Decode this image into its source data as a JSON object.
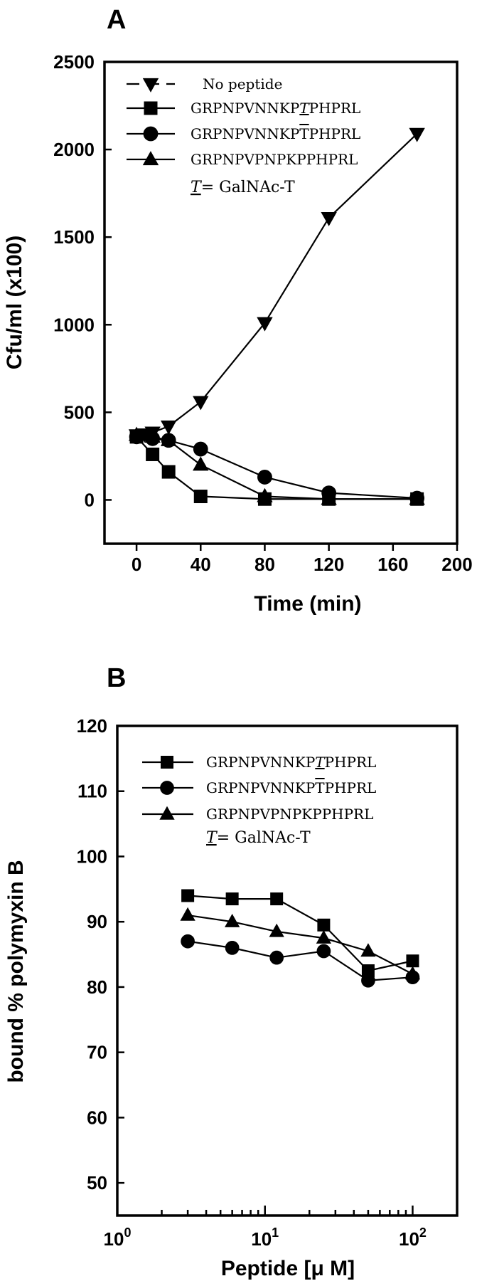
{
  "chart_data": [
    {
      "panel_label": "A",
      "type": "line",
      "xlabel": "Time (min)",
      "ylabel": "Cfu/ml (x100)",
      "xlim": [
        -20,
        200
      ],
      "ylim": [
        -250,
        2500
      ],
      "xticks": [
        0,
        40,
        80,
        120,
        160,
        200
      ],
      "yticks": [
        0,
        500,
        1000,
        1500,
        2000,
        2500
      ],
      "xtick_labels": [
        "0",
        "40",
        "80",
        "120",
        "160",
        "200"
      ],
      "ytick_labels": [
        "0",
        "500",
        "1000",
        "1500",
        "2000",
        "2500"
      ],
      "x_scale": "linear",
      "grid": false,
      "legend_position": "top-left",
      "legend_note": "= GalNAc-T",
      "legend_note_symbol": "T",
      "series": [
        {
          "name": "No peptide",
          "marker": "triangle-down",
          "x": [
            0,
            5,
            10,
            20,
            40,
            80,
            120,
            175
          ],
          "y": [
            370,
            375,
            385,
            420,
            560,
            1010,
            1610,
            2090
          ]
        },
        {
          "name": "GRPNPVNNKPTPHPRL",
          "name_prefix": "GRPNPVNNKP",
          "name_mark": "T",
          "name_suffix": "PHPRL",
          "mark_style": "italic-underline",
          "marker": "square",
          "x": [
            0,
            10,
            20,
            40,
            80,
            120,
            175
          ],
          "y": [
            360,
            260,
            160,
            20,
            5,
            5,
            5
          ]
        },
        {
          "name": "GRPNPVNNKPTPHPRL",
          "name_prefix": "GRPNPVNNKP",
          "name_mark": "T",
          "name_suffix": "PHPRL",
          "mark_style": "overline",
          "marker": "circle",
          "x": [
            0,
            10,
            20,
            40,
            80,
            120,
            175
          ],
          "y": [
            360,
            350,
            340,
            290,
            130,
            40,
            10
          ]
        },
        {
          "name": "GRPNPVPNPKPPHPRL",
          "marker": "triangle-up",
          "x": [
            0,
            10,
            20,
            40,
            80,
            120,
            175
          ],
          "y": [
            370,
            360,
            340,
            200,
            20,
            5,
            5
          ]
        }
      ]
    },
    {
      "panel_label": "B",
      "type": "line",
      "xlabel": "Peptide [μ M]",
      "ylabel": "bound % polymyxin B",
      "xlim": [
        1,
        200
      ],
      "ylim": [
        45,
        120
      ],
      "x_scale": "log",
      "xticks": [
        1,
        10,
        100
      ],
      "xtick_labels": [
        {
          "base": "10",
          "exp": "0"
        },
        {
          "base": "10",
          "exp": "1"
        },
        {
          "base": "10",
          "exp": "2"
        }
      ],
      "yticks": [
        50,
        60,
        70,
        80,
        90,
        100,
        110,
        120
      ],
      "ytick_labels": [
        "50",
        "60",
        "70",
        "80",
        "90",
        "100",
        "110",
        "120"
      ],
      "grid": false,
      "legend_position": "top-left",
      "legend_note": "= GalNAc-T",
      "legend_note_symbol": "T",
      "series": [
        {
          "name": "GRPNPVNNKPTPHPRL",
          "name_prefix": "GRPNPVNNKP",
          "name_mark": "T",
          "name_suffix": "PHPRL",
          "mark_style": "italic-underline",
          "marker": "square",
          "x": [
            3,
            6,
            12,
            25,
            50,
            100
          ],
          "y": [
            94,
            93.5,
            93.5,
            89.5,
            82.5,
            84
          ]
        },
        {
          "name": "GRPNPVNNKPTPHPRL",
          "name_prefix": "GRPNPVNNKP",
          "name_mark": "T",
          "name_suffix": "PHPRL",
          "mark_style": "overline",
          "marker": "circle",
          "x": [
            3,
            6,
            12,
            25,
            50,
            100
          ],
          "y": [
            87,
            86,
            84.5,
            85.5,
            81,
            81.5
          ]
        },
        {
          "name": "GRPNPVPNPKPPHPRL",
          "marker": "triangle-up",
          "x": [
            3,
            6,
            12,
            25,
            50,
            100
          ],
          "y": [
            91,
            90,
            88.5,
            87.5,
            85.5,
            82
          ]
        }
      ]
    }
  ]
}
